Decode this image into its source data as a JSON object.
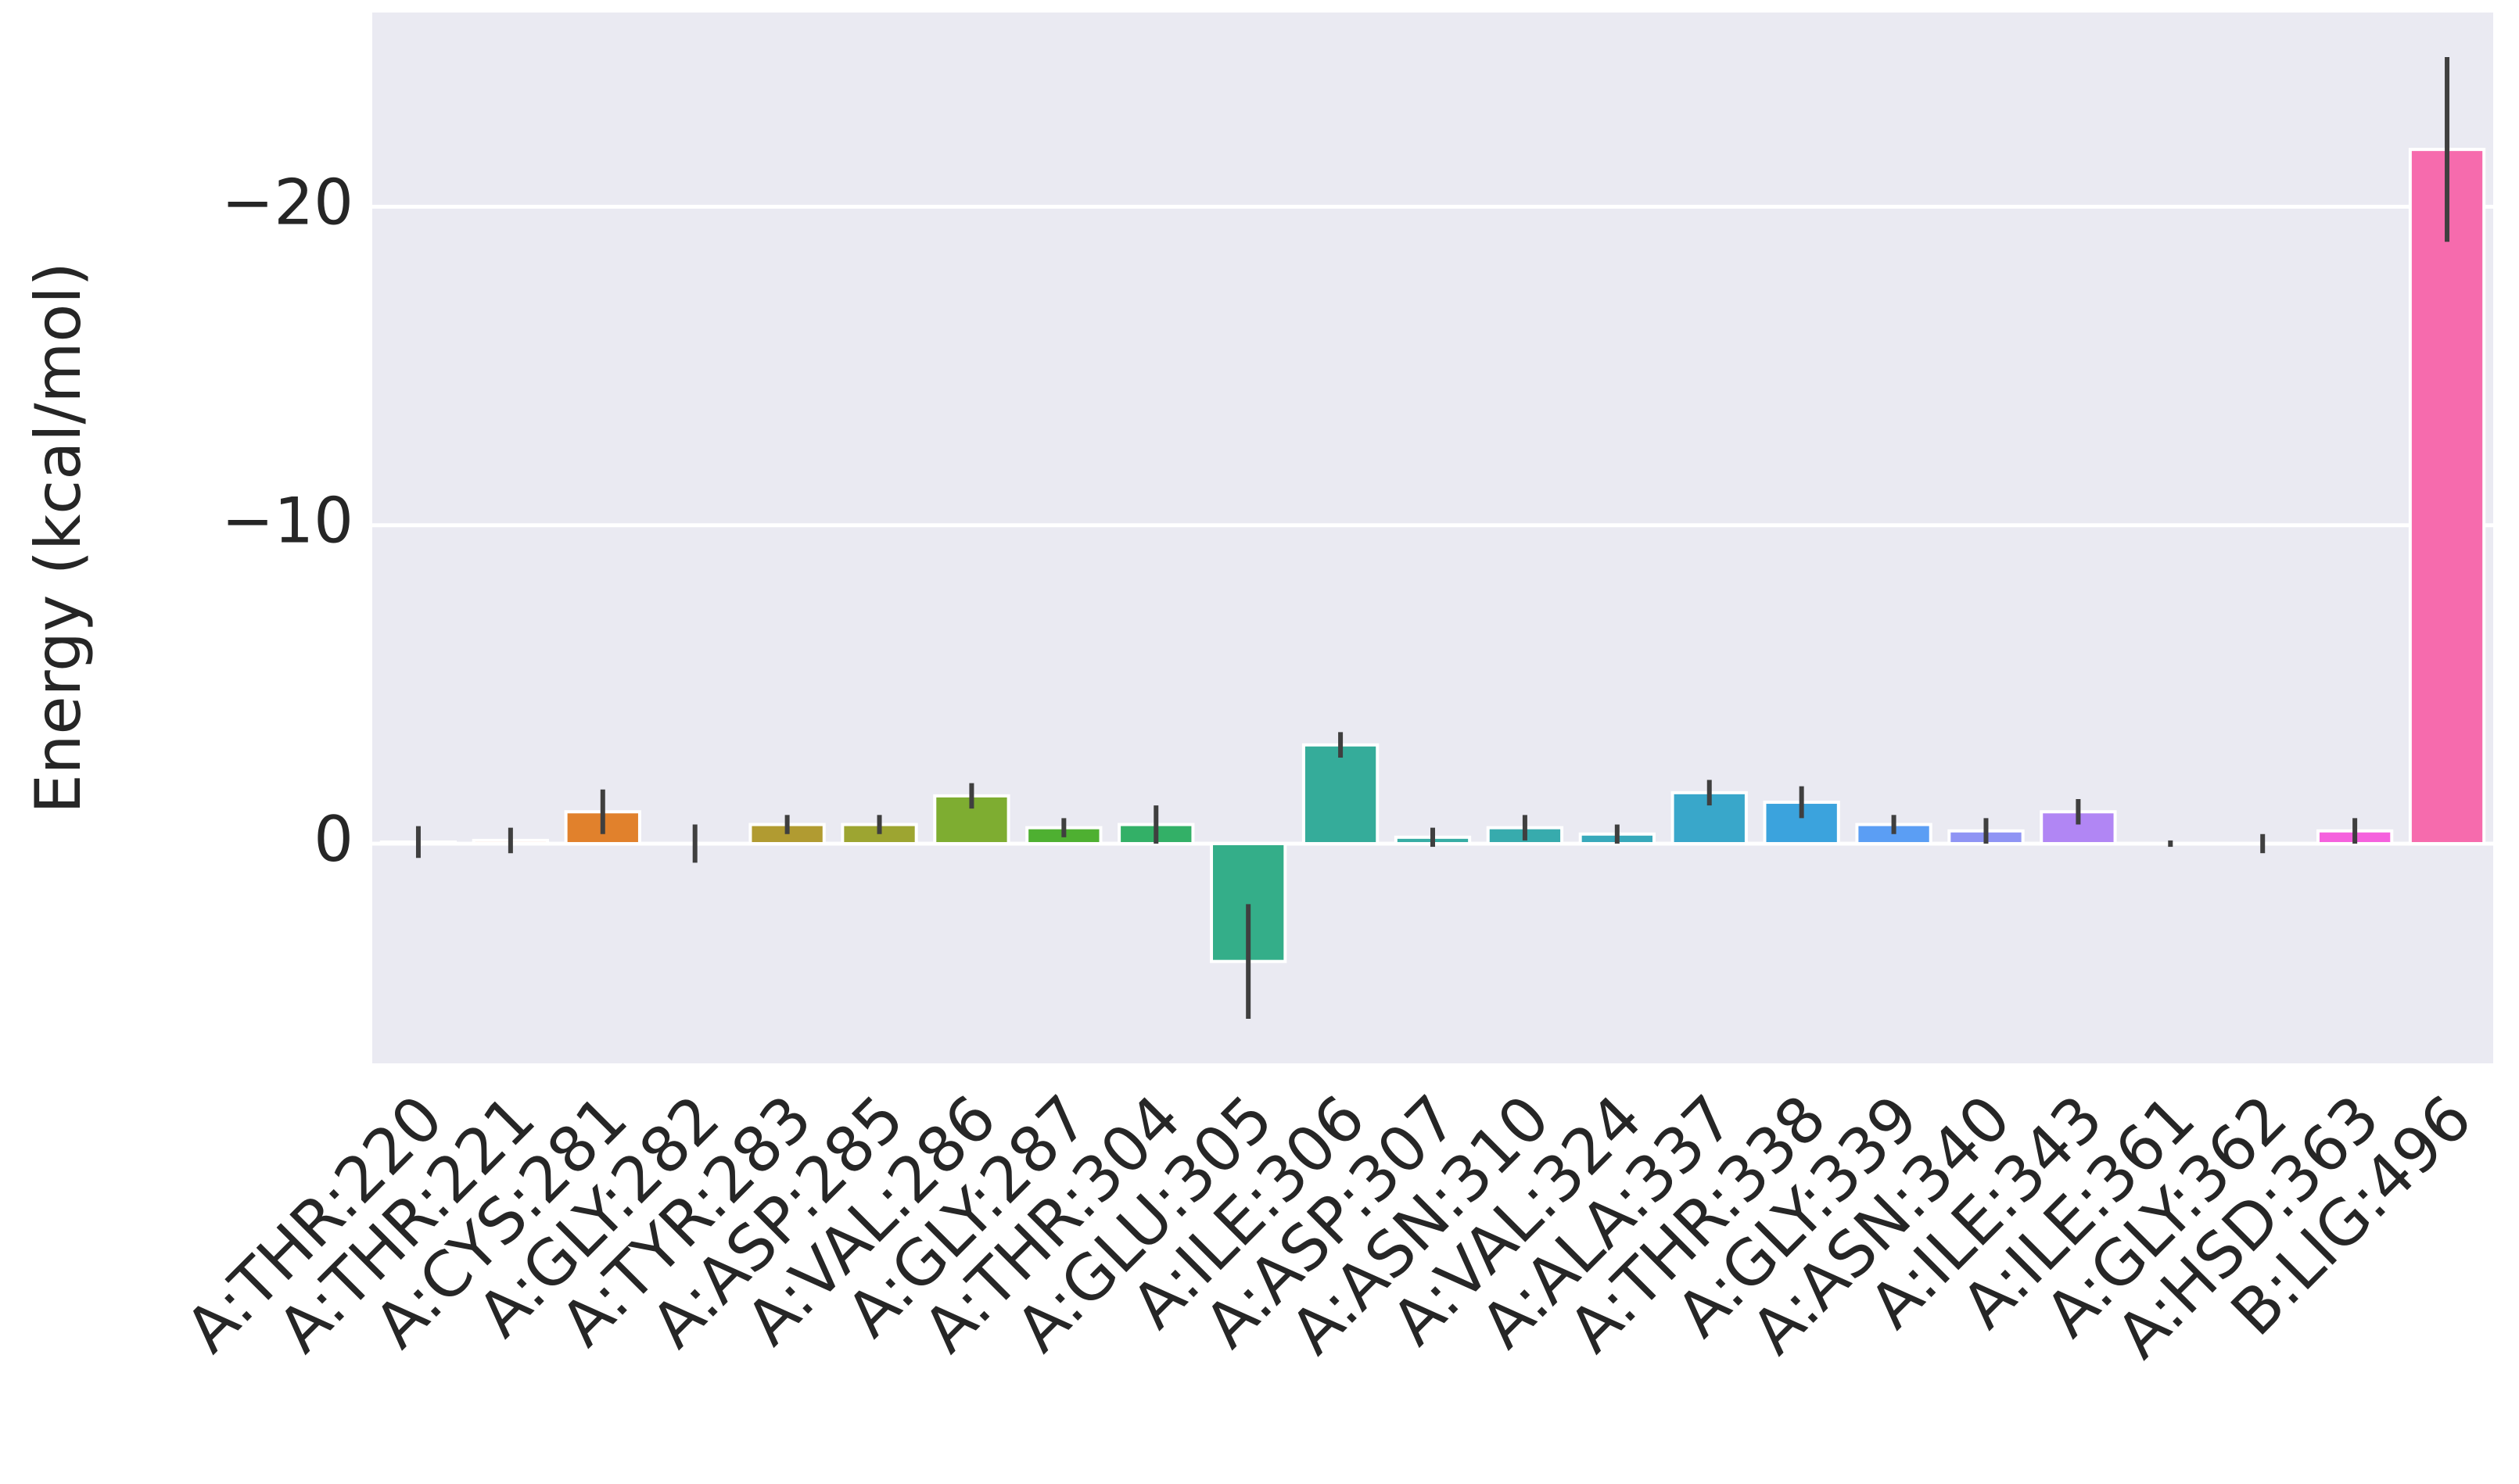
{
  "chart_data": {
    "type": "bar",
    "y_label": "Energy (kcal/mol)",
    "categories": [
      "A:THR:220",
      "A:THR:221",
      "A:CYS:281",
      "A:GLY:282",
      "A:TYR:283",
      "A:ASP:285",
      "A:VAL:286",
      "A:GLY:287",
      "A:THR:304",
      "A:GLU:305",
      "A:ILE:306",
      "A:ASP:307",
      "A:ASN:310",
      "A:VAL:324",
      "A:ALA:337",
      "A:THR:338",
      "A:GLY:339",
      "A:ASN:340",
      "A:ILE:343",
      "A:ILE:361",
      "A:GLY:362",
      "A:HSD:363",
      "B:LIG:496"
    ],
    "values": [
      -0.05,
      -0.1,
      -1.0,
      0.0,
      -0.6,
      -0.6,
      -1.5,
      -0.5,
      -0.6,
      3.7,
      -3.1,
      -0.2,
      -0.5,
      -0.3,
      -1.6,
      -1.3,
      -0.6,
      -0.4,
      -1.0,
      0.0,
      0.0,
      -0.4,
      -21.8
    ],
    "errors": [
      0.5,
      0.4,
      0.7,
      0.6,
      0.3,
      0.3,
      0.4,
      0.3,
      0.6,
      1.8,
      0.4,
      0.3,
      0.4,
      0.3,
      0.4,
      0.5,
      0.3,
      0.4,
      0.4,
      0.1,
      0.3,
      0.4,
      2.9
    ],
    "colors": [
      "#f77189",
      "#f7754f",
      "#e1812c",
      "#c68f31",
      "#b19b31",
      "#9da531",
      "#7ead31",
      "#4eb031",
      "#33b067",
      "#34ae89",
      "#35ac9a",
      "#36ada4",
      "#37abad",
      "#38a9bb",
      "#39a7ca",
      "#3ba3dd",
      "#5b9ef4",
      "#8f94f4",
      "#b186f4",
      "#cc79f4",
      "#e866f4",
      "#f561dd",
      "#f66bad"
    ],
    "ylim": [
      6.9,
      -26.1
    ],
    "yticks": [
      {
        "value": 0,
        "label": "0"
      },
      {
        "value": -10,
        "label": "−10"
      },
      {
        "value": -20,
        "label": "−20"
      }
    ],
    "grid": true
  }
}
